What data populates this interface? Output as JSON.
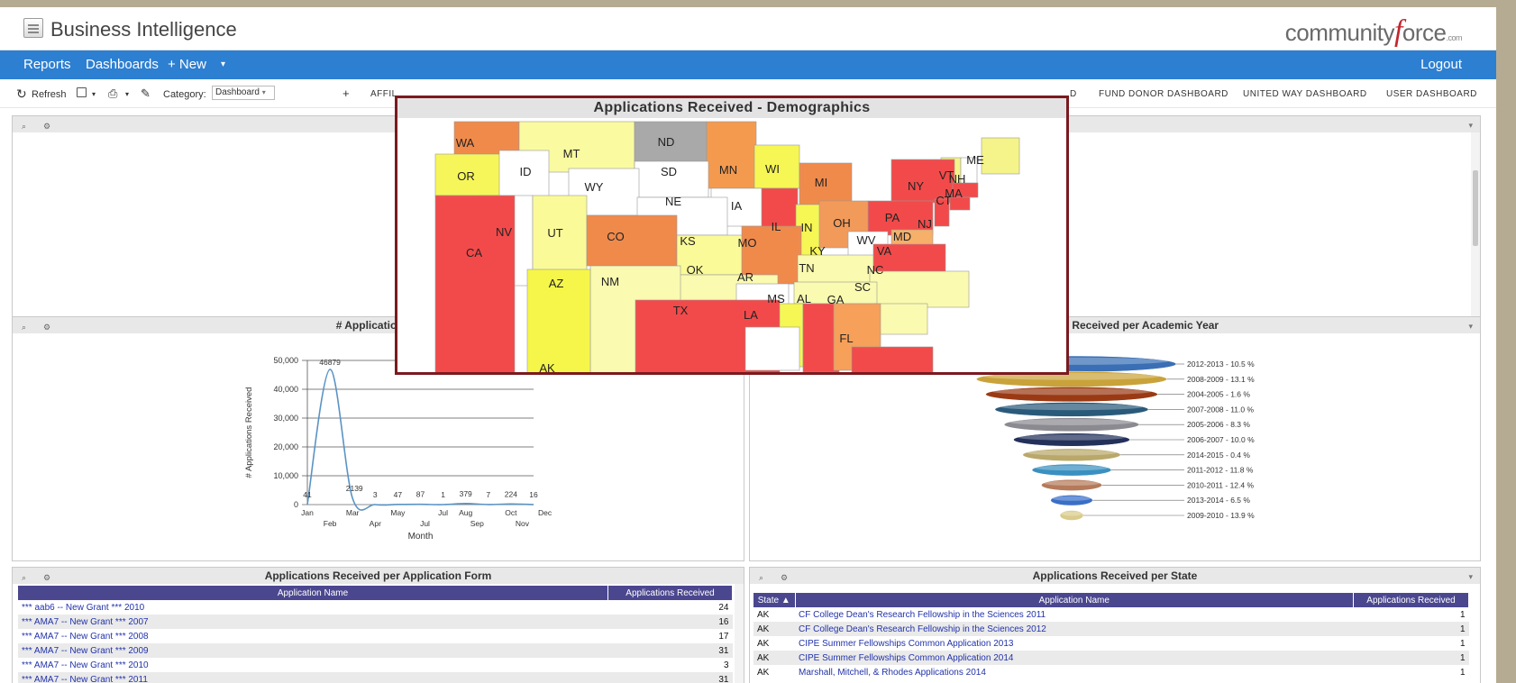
{
  "header": {
    "title": "Business Intelligence",
    "brand_pre": "community",
    "brand_f": "f",
    "brand_post": "orce",
    "brand_com": ".com"
  },
  "nav": {
    "reports": "Reports",
    "dashboards": "Dashboards",
    "new": "+ New",
    "logout": "Logout"
  },
  "toolbar": {
    "refresh": "Refresh",
    "category_label": "Category:",
    "category_value": "Dashboard",
    "tabs": [
      "AFFIL",
      "D",
      "FUND DONOR DASHBOARD",
      "UNITED WAY DASHBOARD",
      "USER DASHBOARD"
    ]
  },
  "colors": {
    "nav": "#2d7fd1",
    "table_header": "#4b478f",
    "popup_border": "#7a1a1f",
    "link": "#2233aa"
  },
  "map_popup": {
    "title": "Applications Received - Demographics",
    "states": [
      "WA",
      "MT",
      "ND",
      "MN",
      "ME",
      "OR",
      "ID",
      "SD",
      "WI",
      "VT",
      "NH",
      "NY",
      "MA",
      "MI",
      "WY",
      "IA",
      "CT",
      "NE",
      "PA",
      "NJ",
      "NV",
      "UT",
      "IL",
      "IN",
      "OH",
      "CO",
      "MD",
      "CA",
      "KS",
      "MO",
      "WV",
      "VA",
      "KY",
      "OK",
      "NC",
      "AR",
      "TN",
      "NM",
      "AZ",
      "SC",
      "MS",
      "AL",
      "GA",
      "TX",
      "LA",
      "FL",
      "AK"
    ]
  },
  "monthly_panel": {
    "title": "# Applications R"
  },
  "chart_data": [
    {
      "type": "line",
      "ylabel": "# Applications Received",
      "xlabel": "Month",
      "ylim": [
        0,
        50000
      ],
      "yticks": [
        "50,000",
        "40,000",
        "30,000",
        "20,000",
        "10,000",
        "0"
      ],
      "xticks_top": [
        "Jan",
        "Mar",
        "May",
        "Jul",
        "Aug",
        "Oct",
        "Dec"
      ],
      "xticks_bottom": [
        "Feb",
        "Apr",
        "Jul",
        "Sep",
        "Nov"
      ],
      "points": [
        {
          "x": 1,
          "y": 41,
          "label": "41"
        },
        {
          "x": 2,
          "y": 46879,
          "label": "46879"
        },
        {
          "x": 3,
          "y": 2139,
          "label": "2139"
        },
        {
          "x": 4,
          "y": 3,
          "label": "3"
        },
        {
          "x": 5,
          "y": 47,
          "label": "47"
        },
        {
          "x": 6,
          "y": 87,
          "label": "87"
        },
        {
          "x": 7,
          "y": 1,
          "label": "1"
        },
        {
          "x": 8,
          "y": 379,
          "label": "379"
        },
        {
          "x": 9,
          "y": 7,
          "label": "7"
        },
        {
          "x": 10,
          "y": 224,
          "label": "224"
        },
        {
          "x": 11,
          "y": 16,
          "label": "16"
        }
      ]
    },
    {
      "type": "funnel",
      "title": "ns Received per Academic Year",
      "slices": [
        {
          "label": "2012-2013 - 10.5 %",
          "value": 10.5,
          "color": "#3a6fb5"
        },
        {
          "label": "2008-2009 - 13.1 %",
          "value": 13.1,
          "color": "#c9a23a"
        },
        {
          "label": "2004-2005 - 1.6 %",
          "value": 1.6,
          "color": "#9a3a14"
        },
        {
          "label": "2007-2008 - 11.0 %",
          "value": 11.0,
          "color": "#2a5a7a"
        },
        {
          "label": "2005-2006 - 8.3 %",
          "value": 8.3,
          "color": "#8a8a90"
        },
        {
          "label": "2006-2007 - 10.0 %",
          "value": 10.0,
          "color": "#22305a"
        },
        {
          "label": "2014-2015 - 0.4 %",
          "value": 0.4,
          "color": "#b9a86a"
        },
        {
          "label": "2011-2012 - 11.8 %",
          "value": 11.8,
          "color": "#3a90c0"
        },
        {
          "label": "2010-2011 - 12.4 %",
          "value": 12.4,
          "color": "#b57a5a"
        },
        {
          "label": "2013-2014 - 6.5 %",
          "value": 6.5,
          "color": "#3a6fc8"
        },
        {
          "label": "2009-2010 - 13.9 %",
          "value": 13.9,
          "color": "#d9cb8a"
        }
      ]
    }
  ],
  "form_panel": {
    "title": "Applications Received per Application Form",
    "columns": [
      "Application Name",
      "Applications Received"
    ],
    "rows": [
      [
        "*** aab6 -- New Grant *** 2010",
        "24"
      ],
      [
        "*** AMA7 -- New Grant *** 2007",
        "16"
      ],
      [
        "*** AMA7 -- New Grant *** 2008",
        "17"
      ],
      [
        "*** AMA7 -- New Grant *** 2009",
        "31"
      ],
      [
        "*** AMA7 -- New Grant *** 2010",
        "3"
      ],
      [
        "*** AMA7 -- New Grant *** 2011",
        "31"
      ]
    ]
  },
  "state_panel": {
    "title": "Applications Received per State",
    "columns": [
      "State ▲",
      "Application Name",
      "Applications Received"
    ],
    "rows": [
      [
        "AK",
        "CF College Dean's Research Fellowship in the Sciences 2011",
        "1"
      ],
      [
        "AK",
        "CF College Dean's Research Fellowship in the Sciences 2012",
        "1"
      ],
      [
        "AK",
        "CIPE Summer Fellowships Common Application 2013",
        "1"
      ],
      [
        "AK",
        "CIPE Summer Fellowships Common Application 2014",
        "1"
      ],
      [
        "AK",
        "Marshall, Mitchell, & Rhodes Applications 2014",
        "1"
      ]
    ]
  }
}
